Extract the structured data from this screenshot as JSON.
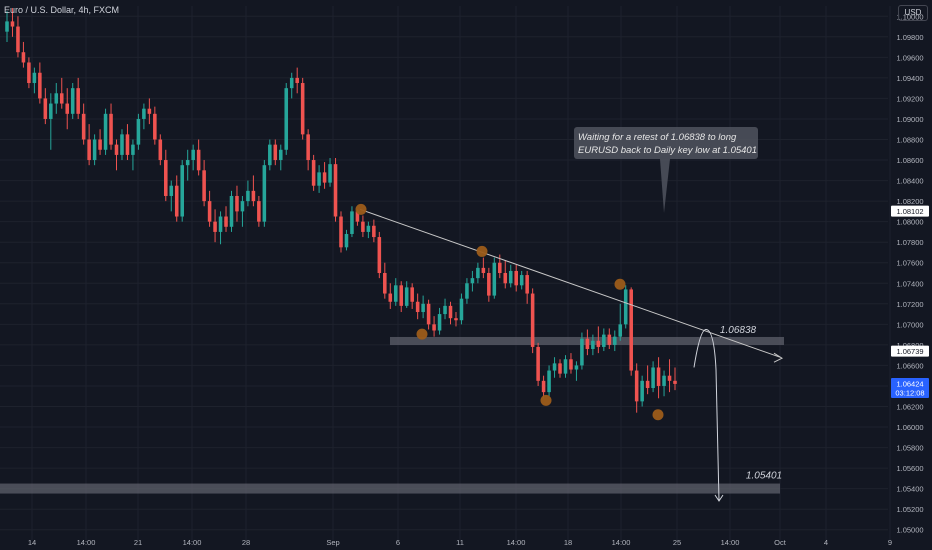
{
  "header": {
    "symbol_text": "Euro / U.S. Dollar, 4h, FXCM",
    "currency": "USD"
  },
  "colors": {
    "background": "#131722",
    "up": "#26a69a",
    "down": "#ef5350",
    "grid": "#1e222d",
    "text": "#d1d4dc",
    "axis_text": "#b2b5be",
    "marker": "#9c5c1a",
    "zone": "#5d606b",
    "current_price_bg": "#2962ff"
  },
  "annotation": {
    "line1": "Waiting for a retest of 1.06838 to long",
    "line2": "EURUSD back to Daily key low at 1.05401"
  },
  "chart_data": {
    "type": "candlestick",
    "title": "Euro / U.S. Dollar, 4h, FXCM",
    "ylim": [
      1.049,
      1.101
    ],
    "y_tick_values": [
      1.1,
      1.098,
      1.096,
      1.094,
      1.092,
      1.09,
      1.088,
      1.086,
      1.084,
      1.082,
      1.08,
      1.078,
      1.076,
      1.074,
      1.072,
      1.07,
      1.068,
      1.066,
      1.064,
      1.062,
      1.06,
      1.058,
      1.056,
      1.054,
      1.052,
      1.05
    ],
    "y_tick_labels": [
      "1.10000",
      "1.09800",
      "1.09600",
      "1.09400",
      "1.09200",
      "1.09000",
      "1.08800",
      "1.08600",
      "1.08400",
      "1.08200",
      "1.08000",
      "1.07800",
      "1.07600",
      "1.07400",
      "1.07200",
      "1.07000",
      "1.06800",
      "1.06600",
      "1.06400",
      "1.06200",
      "1.06000",
      "1.05800",
      "1.05600",
      "1.05400",
      "1.05200",
      "1.05000"
    ],
    "x_ticks": [
      "14",
      "14:00",
      "21",
      "14:00",
      "28",
      "Sep",
      "6",
      "11",
      "14:00",
      "18",
      "14:00",
      "25",
      "14:00",
      "Oct",
      "4",
      "9"
    ],
    "candles_ohlc": [
      [
        1.0985,
        1.1005,
        1.0975,
        1.0995
      ],
      [
        1.0995,
        1.1008,
        1.098,
        1.099
      ],
      [
        1.099,
        1.1,
        1.096,
        1.0965
      ],
      [
        1.0965,
        1.0975,
        1.095,
        1.0955
      ],
      [
        1.0955,
        1.096,
        1.093,
        1.0935
      ],
      [
        1.0935,
        1.095,
        1.0925,
        1.0945
      ],
      [
        1.0945,
        1.0955,
        1.0915,
        1.092
      ],
      [
        1.092,
        1.093,
        1.0895,
        1.09
      ],
      [
        1.09,
        1.0925,
        1.087,
        1.0915
      ],
      [
        1.0915,
        1.0935,
        1.0905,
        1.0925
      ],
      [
        1.0925,
        1.094,
        1.091,
        1.0915
      ],
      [
        1.0915,
        1.093,
        1.089,
        1.0905
      ],
      [
        1.0905,
        1.0935,
        1.09,
        1.093
      ],
      [
        1.093,
        1.094,
        1.09,
        1.0905
      ],
      [
        1.0905,
        1.0915,
        1.0875,
        1.088
      ],
      [
        1.088,
        1.0895,
        1.0855,
        1.086
      ],
      [
        1.086,
        1.0885,
        1.0855,
        1.088
      ],
      [
        1.088,
        1.089,
        1.0865,
        1.087
      ],
      [
        1.087,
        1.091,
        1.0865,
        1.0905
      ],
      [
        1.0905,
        1.0915,
        1.087,
        1.0875
      ],
      [
        1.0875,
        1.088,
        1.085,
        1.0865
      ],
      [
        1.0865,
        1.089,
        1.086,
        1.0885
      ],
      [
        1.0885,
        1.0895,
        1.086,
        1.0865
      ],
      [
        1.0865,
        1.088,
        1.085,
        1.0875
      ],
      [
        1.0875,
        1.0905,
        1.087,
        1.09
      ],
      [
        1.09,
        1.0915,
        1.089,
        1.091
      ],
      [
        1.091,
        1.092,
        1.0895,
        1.0905
      ],
      [
        1.0905,
        1.0912,
        1.0875,
        1.088
      ],
      [
        1.088,
        1.0885,
        1.0855,
        1.086
      ],
      [
        1.086,
        1.087,
        1.082,
        1.0825
      ],
      [
        1.0825,
        1.084,
        1.081,
        1.0835
      ],
      [
        1.0835,
        1.0845,
        1.08,
        1.0805
      ],
      [
        1.0805,
        1.086,
        1.08,
        1.0855
      ],
      [
        1.0855,
        1.087,
        1.084,
        1.086
      ],
      [
        1.086,
        1.0875,
        1.085,
        1.087
      ],
      [
        1.087,
        1.088,
        1.0845,
        1.085
      ],
      [
        1.085,
        1.086,
        1.0815,
        1.082
      ],
      [
        1.082,
        1.083,
        1.0795,
        1.08
      ],
      [
        1.08,
        1.0812,
        1.078,
        1.079
      ],
      [
        1.079,
        1.081,
        1.0778,
        1.0805
      ],
      [
        1.0805,
        1.0815,
        1.079,
        1.0795
      ],
      [
        1.0795,
        1.083,
        1.079,
        1.0825
      ],
      [
        1.0825,
        1.0835,
        1.08,
        1.081
      ],
      [
        1.081,
        1.0825,
        1.0795,
        1.082
      ],
      [
        1.082,
        1.084,
        1.0815,
        1.083
      ],
      [
        1.083,
        1.0845,
        1.0815,
        1.082
      ],
      [
        1.082,
        1.0825,
        1.0795,
        1.08
      ],
      [
        1.08,
        1.086,
        1.0795,
        1.0855
      ],
      [
        1.0855,
        1.088,
        1.085,
        1.0875
      ],
      [
        1.0875,
        1.088,
        1.0855,
        1.086
      ],
      [
        1.086,
        1.0875,
        1.085,
        1.087
      ],
      [
        1.087,
        1.0935,
        1.0865,
        1.093
      ],
      [
        1.093,
        1.0945,
        1.092,
        1.094
      ],
      [
        1.094,
        1.095,
        1.0925,
        1.0935
      ],
      [
        1.0935,
        1.094,
        1.088,
        1.0885
      ],
      [
        1.0885,
        1.089,
        1.085,
        1.086
      ],
      [
        1.086,
        1.0865,
        1.083,
        1.0835
      ],
      [
        1.0835,
        1.0855,
        1.0828,
        1.0848
      ],
      [
        1.0848,
        1.0858,
        1.0832,
        1.0838
      ],
      [
        1.0838,
        1.0862,
        1.0834,
        1.0856
      ],
      [
        1.0856,
        1.0862,
        1.08,
        1.0805
      ],
      [
        1.0805,
        1.081,
        1.077,
        1.0775
      ],
      [
        1.0775,
        1.0792,
        1.0772,
        1.0788
      ],
      [
        1.0788,
        1.0815,
        1.0785,
        1.081
      ],
      [
        1.081,
        1.0812,
        1.0796,
        1.08
      ],
      [
        1.08,
        1.0806,
        1.0785,
        1.079
      ],
      [
        1.079,
        1.08,
        1.0784,
        1.0796
      ],
      [
        1.0796,
        1.0802,
        1.078,
        1.0785
      ],
      [
        1.0785,
        1.079,
        1.0745,
        1.075
      ],
      [
        1.075,
        1.076,
        1.0725,
        1.073
      ],
      [
        1.073,
        1.074,
        1.0715,
        1.0722
      ],
      [
        1.0722,
        1.0745,
        1.0718,
        1.0738
      ],
      [
        1.0738,
        1.0742,
        1.0712,
        1.0718
      ],
      [
        1.0718,
        1.0742,
        1.0716,
        1.0736
      ],
      [
        1.0736,
        1.074,
        1.0715,
        1.0722
      ],
      [
        1.0722,
        1.073,
        1.0705,
        1.0712
      ],
      [
        1.0712,
        1.0728,
        1.0706,
        1.072
      ],
      [
        1.072,
        1.0724,
        1.0695,
        1.07
      ],
      [
        1.07,
        1.0708,
        1.0688,
        1.0694
      ],
      [
        1.0694,
        1.0716,
        1.069,
        1.071
      ],
      [
        1.071,
        1.0725,
        1.0705,
        1.0718
      ],
      [
        1.0718,
        1.0722,
        1.07,
        1.0706
      ],
      [
        1.0706,
        1.0712,
        1.0698,
        1.0704
      ],
      [
        1.0704,
        1.073,
        1.07,
        1.0725
      ],
      [
        1.0725,
        1.0745,
        1.072,
        1.074
      ],
      [
        1.074,
        1.0752,
        1.0732,
        1.0745
      ],
      [
        1.0745,
        1.076,
        1.074,
        1.0755
      ],
      [
        1.0755,
        1.0765,
        1.0745,
        1.075
      ],
      [
        1.075,
        1.0755,
        1.0722,
        1.0728
      ],
      [
        1.0728,
        1.0765,
        1.0725,
        1.076
      ],
      [
        1.076,
        1.0768,
        1.0745,
        1.075
      ],
      [
        1.075,
        1.0762,
        1.0735,
        1.074
      ],
      [
        1.074,
        1.0758,
        1.0736,
        1.0752
      ],
      [
        1.0752,
        1.0758,
        1.0732,
        1.0738
      ],
      [
        1.0738,
        1.0752,
        1.0734,
        1.0748
      ],
      [
        1.0748,
        1.0752,
        1.072,
        1.073
      ],
      [
        1.073,
        1.0735,
        1.0672,
        1.0678
      ],
      [
        1.0678,
        1.0682,
        1.064,
        1.0645
      ],
      [
        1.0645,
        1.065,
        1.0628,
        1.0634
      ],
      [
        1.0634,
        1.066,
        1.063,
        1.0655
      ],
      [
        1.0655,
        1.0668,
        1.0648,
        1.0662
      ],
      [
        1.0662,
        1.0666,
        1.0648,
        1.0652
      ],
      [
        1.0652,
        1.067,
        1.0648,
        1.0666
      ],
      [
        1.0666,
        1.0672,
        1.0652,
        1.0656
      ],
      [
        1.0656,
        1.0664,
        1.0645,
        1.066
      ],
      [
        1.066,
        1.0692,
        1.0656,
        1.0686
      ],
      [
        1.0686,
        1.0695,
        1.067,
        1.0676
      ],
      [
        1.0676,
        1.069,
        1.067,
        1.0684
      ],
      [
        1.0684,
        1.0698,
        1.0672,
        1.0678
      ],
      [
        1.0678,
        1.0696,
        1.0674,
        1.069
      ],
      [
        1.069,
        1.0696,
        1.0676,
        1.068
      ],
      [
        1.068,
        1.0694,
        1.0674,
        1.0688
      ],
      [
        1.0688,
        1.072,
        1.0684,
        1.07
      ],
      [
        1.07,
        1.0738,
        1.0696,
        1.0734
      ],
      [
        1.0734,
        1.0736,
        1.065,
        1.0655
      ],
      [
        1.0655,
        1.0662,
        1.0614,
        1.0625
      ],
      [
        1.0625,
        1.065,
        1.062,
        1.0645
      ],
      [
        1.0645,
        1.066,
        1.0632,
        1.0638
      ],
      [
        1.0638,
        1.0664,
        1.0634,
        1.0658
      ],
      [
        1.0658,
        1.0668,
        1.0628,
        1.064
      ],
      [
        1.064,
        1.0655,
        1.063,
        1.065
      ],
      [
        1.065,
        1.0666,
        1.0634,
        1.0645
      ],
      [
        1.0645,
        1.0658,
        1.0636,
        1.0642
      ]
    ],
    "trendline": {
      "from": [
        1.0812,
        1.0812
      ],
      "to": [
        1.0668,
        1.0668
      ]
    },
    "levels": [
      {
        "label": "1.06838",
        "value": 1.06838
      },
      {
        "label": "1.05401",
        "value": 1.05401
      }
    ],
    "price_labels": [
      {
        "text": "1.08102",
        "value": 1.08102
      },
      {
        "text": "1.06739",
        "value": 1.06739
      },
      {
        "text": "1.06424",
        "value": 1.06424,
        "countdown": "03:12:08"
      }
    ],
    "markers": [
      1.0812,
      1.0771,
      1.06905,
      1.0739,
      1.0626,
      1.0612
    ],
    "projection": {
      "retest": 1.0695,
      "target": 1.0528
    }
  }
}
